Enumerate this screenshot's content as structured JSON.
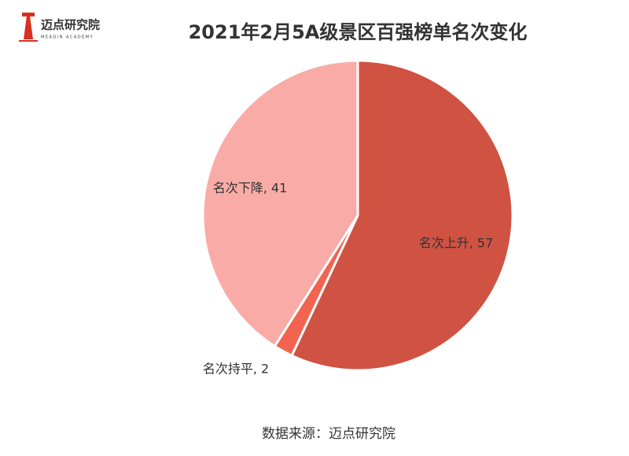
{
  "header": {
    "logo": "迈点研究院",
    "logo_sub": "MEADIN ACADEMY"
  },
  "chart_data": {
    "type": "pie",
    "title": "2021年2月5A级景区百强榜单名次变化",
    "values": [
      57,
      2,
      41
    ],
    "value_labels": [
      "名次上升, 57",
      "名次持平, 2",
      "名次下降, 41"
    ],
    "colors": [
      "#d05243",
      "#f26450",
      "#f9aca7"
    ],
    "source": "数据来源：迈点研究院"
  }
}
